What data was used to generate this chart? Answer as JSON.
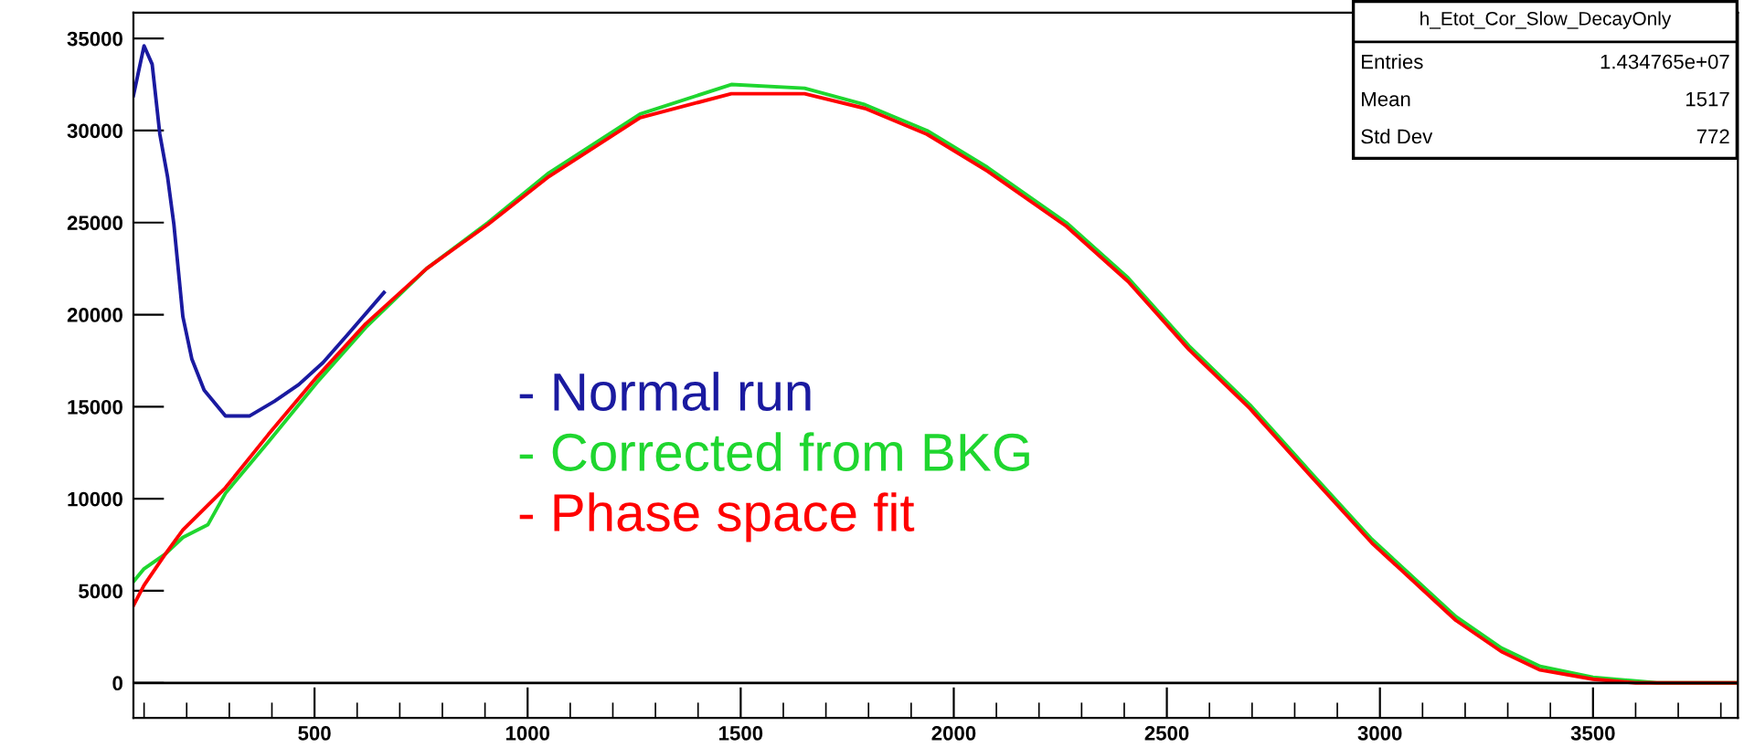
{
  "chart_data": {
    "type": "line",
    "xlim": [
      75,
      3840
    ],
    "ylim": [
      -1900,
      36400
    ],
    "xticks": [
      500,
      1000,
      1500,
      2000,
      2500,
      3000,
      3500
    ],
    "yticks": [
      0,
      5000,
      10000,
      15000,
      20000,
      25000,
      30000,
      35000
    ],
    "grid": false,
    "legend": "center",
    "ref_lines": [
      {
        "axis": "y",
        "value": 0,
        "color": "#000000"
      }
    ],
    "annotations": [
      "h_Etot_Cor_Slow_DecayOnly",
      "Entries",
      "1.434765e+07",
      "Mean",
      "1517",
      "Std Dev",
      "772"
    ],
    "series": [
      {
        "name": "- Normal run",
        "color": "#1a1aa0",
        "x": [
          75,
          100,
          119,
          137,
          155,
          170,
          191,
          212,
          241,
          291,
          348,
          406,
          463,
          520,
          577,
          663
        ],
        "values": [
          31900,
          34600,
          33600,
          29800,
          27500,
          24900,
          19900,
          17600,
          15900,
          14500,
          14500,
          15300,
          16200,
          17400,
          18900,
          21200
        ]
      },
      {
        "name": "- Corrected from BKG",
        "color": "#1fd62f",
        "x": [
          75,
          100,
          150,
          191,
          250,
          291,
          392,
          505,
          620,
          763,
          907,
          1050,
          1264,
          1478,
          1650,
          1792,
          1937,
          2079,
          2264,
          2409,
          2552,
          2695,
          2839,
          2981,
          3178,
          3285,
          3376,
          3500,
          3650,
          3840
        ],
        "values": [
          5500,
          6200,
          7000,
          7900,
          8600,
          10300,
          13100,
          16300,
          19300,
          22500,
          25000,
          27700,
          30900,
          32500,
          32300,
          31400,
          30000,
          28000,
          25000,
          22000,
          18300,
          15100,
          11400,
          7800,
          3600,
          1900,
          900,
          300,
          0,
          0
        ]
      },
      {
        "name": "- Phase space fit",
        "color": "#ff0000",
        "x": [
          75,
          100,
          150,
          191,
          291,
          392,
          505,
          620,
          763,
          907,
          1050,
          1264,
          1478,
          1650,
          1792,
          1937,
          2079,
          2264,
          2409,
          2552,
          2695,
          2839,
          2981,
          3178,
          3285,
          3376,
          3500,
          3600,
          3840
        ],
        "values": [
          4200,
          5300,
          7000,
          8300,
          10600,
          13500,
          16600,
          19500,
          22500,
          24900,
          27500,
          30700,
          32000,
          32000,
          31200,
          29800,
          27800,
          24800,
          21800,
          18100,
          14900,
          11200,
          7600,
          3400,
          1700,
          700,
          200,
          0,
          0
        ]
      }
    ]
  }
}
